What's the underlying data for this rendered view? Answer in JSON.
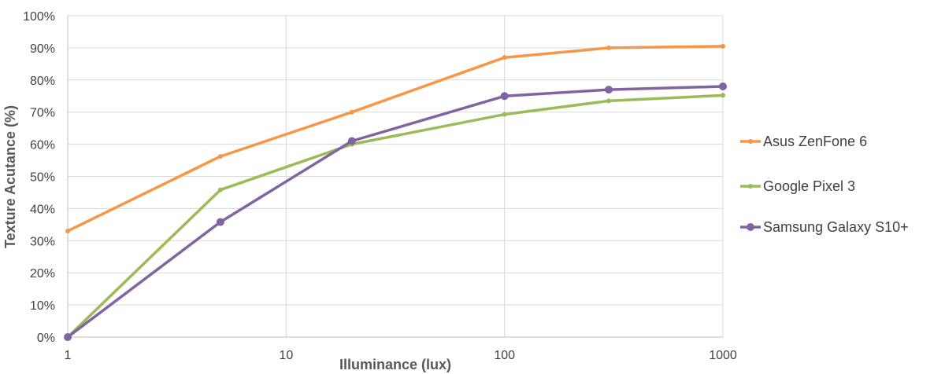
{
  "chart_data": {
    "type": "line",
    "x_scale": "log",
    "xlabel": "Illuminance (lux)",
    "ylabel": "Texture Acutance (%)",
    "xlim": [
      1,
      1000
    ],
    "ylim": [
      0,
      100
    ],
    "x_ticks": [
      "1",
      "10",
      "100",
      "1000"
    ],
    "x_tick_values": [
      1,
      10,
      100,
      1000
    ],
    "y_ticks": [
      "0%",
      "10%",
      "20%",
      "30%",
      "40%",
      "50%",
      "60%",
      "70%",
      "80%",
      "90%",
      "100%"
    ],
    "y_tick_values": [
      0,
      10,
      20,
      30,
      40,
      50,
      60,
      70,
      80,
      90,
      100
    ],
    "grid": true,
    "legend_position": "right",
    "series": [
      {
        "name": "Asus ZenFone 6",
        "color": "#f79646",
        "marker": "small",
        "x": [
          1,
          5,
          20,
          100,
          300,
          1000
        ],
        "y": [
          33,
          56.2,
          70,
          87,
          90,
          90.5
        ]
      },
      {
        "name": "Google Pixel 3",
        "color": "#9bbb59",
        "marker": "small",
        "x": [
          1,
          5,
          20,
          100,
          300,
          1000
        ],
        "y": [
          0,
          45.8,
          60,
          69.3,
          73.5,
          75.2
        ]
      },
      {
        "name": "Samsung Galaxy S10+",
        "color": "#8064a2",
        "marker": "large",
        "x": [
          1,
          5,
          20,
          100,
          300,
          1000
        ],
        "y": [
          0,
          35.8,
          61,
          75,
          77,
          78
        ]
      }
    ]
  }
}
